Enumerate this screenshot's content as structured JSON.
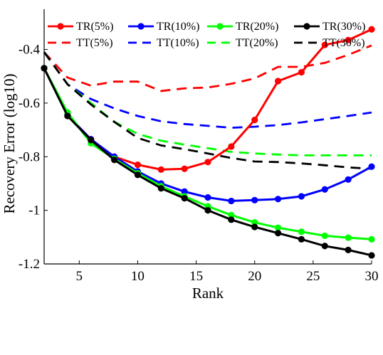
{
  "chart_data": {
    "type": "line",
    "xlabel": "Rank",
    "ylabel": "Recovery Error (log10)",
    "xlim": [
      2,
      30
    ],
    "ylim": [
      -1.2,
      -0.25
    ],
    "xticks": [
      5,
      10,
      15,
      20,
      25,
      30
    ],
    "yticks": [
      -0.4,
      -0.6,
      -0.8,
      -1,
      -1.2
    ],
    "xtick_labels": [
      "5",
      "10",
      "15",
      "20",
      "25",
      "30"
    ],
    "ytick_labels": [
      "-0.4",
      "-0.6",
      "-0.8",
      "-1",
      "-1.2"
    ],
    "grid": false,
    "legend_placement": "top",
    "x": [
      2,
      4,
      6,
      8,
      10,
      12,
      14,
      16,
      18,
      20,
      22,
      24,
      26,
      28,
      30
    ],
    "series": [
      {
        "name": "TR(5%)",
        "style": "solid-marker",
        "color": "#ff0000",
        "values": [
          -0.47,
          -0.645,
          -0.735,
          -0.8,
          -0.83,
          -0.848,
          -0.845,
          -0.82,
          -0.762,
          -0.663,
          -0.518,
          -0.485,
          -0.383,
          -0.365,
          -0.325
        ]
      },
      {
        "name": "TR(10%)",
        "style": "solid-marker",
        "color": "#0000ff",
        "values": [
          -0.47,
          -0.645,
          -0.735,
          -0.8,
          -0.855,
          -0.9,
          -0.93,
          -0.952,
          -0.965,
          -0.962,
          -0.958,
          -0.948,
          -0.922,
          -0.885,
          -0.837
        ]
      },
      {
        "name": "TR(20%)",
        "style": "solid-marker",
        "color": "#00ff00",
        "values": [
          -0.47,
          -0.635,
          -0.75,
          -0.808,
          -0.862,
          -0.91,
          -0.948,
          -0.985,
          -1.018,
          -1.045,
          -1.065,
          -1.08,
          -1.095,
          -1.102,
          -1.108
        ]
      },
      {
        "name": "TR(30%)",
        "style": "solid-marker",
        "color": "#000000",
        "values": [
          -0.47,
          -0.648,
          -0.738,
          -0.812,
          -0.868,
          -0.918,
          -0.955,
          -1.0,
          -1.035,
          -1.062,
          -1.085,
          -1.108,
          -1.133,
          -1.148,
          -1.168
        ]
      },
      {
        "name": "TT(5%)",
        "style": "dashed",
        "color": "#ff0000",
        "values": [
          -0.41,
          -0.505,
          -0.535,
          -0.52,
          -0.52,
          -0.555,
          -0.545,
          -0.542,
          -0.528,
          -0.508,
          -0.465,
          -0.465,
          -0.45,
          -0.42,
          -0.385
        ]
      },
      {
        "name": "TT(10%)",
        "style": "dashed",
        "color": "#0000ff",
        "values": [
          -0.41,
          -0.53,
          -0.585,
          -0.62,
          -0.648,
          -0.668,
          -0.678,
          -0.685,
          -0.692,
          -0.688,
          -0.682,
          -0.672,
          -0.66,
          -0.648,
          -0.635
        ]
      },
      {
        "name": "TT(20%)",
        "style": "dashed",
        "color": "#00ff00",
        "values": [
          -0.41,
          -0.53,
          -0.6,
          -0.67,
          -0.715,
          -0.74,
          -0.755,
          -0.768,
          -0.782,
          -0.788,
          -0.792,
          -0.795,
          -0.795,
          -0.795,
          -0.795
        ]
      },
      {
        "name": "TT(30%)",
        "style": "dashed",
        "color": "#000000",
        "values": [
          -0.41,
          -0.53,
          -0.605,
          -0.67,
          -0.73,
          -0.758,
          -0.772,
          -0.788,
          -0.805,
          -0.818,
          -0.82,
          -0.825,
          -0.832,
          -0.84,
          -0.845
        ]
      }
    ]
  }
}
